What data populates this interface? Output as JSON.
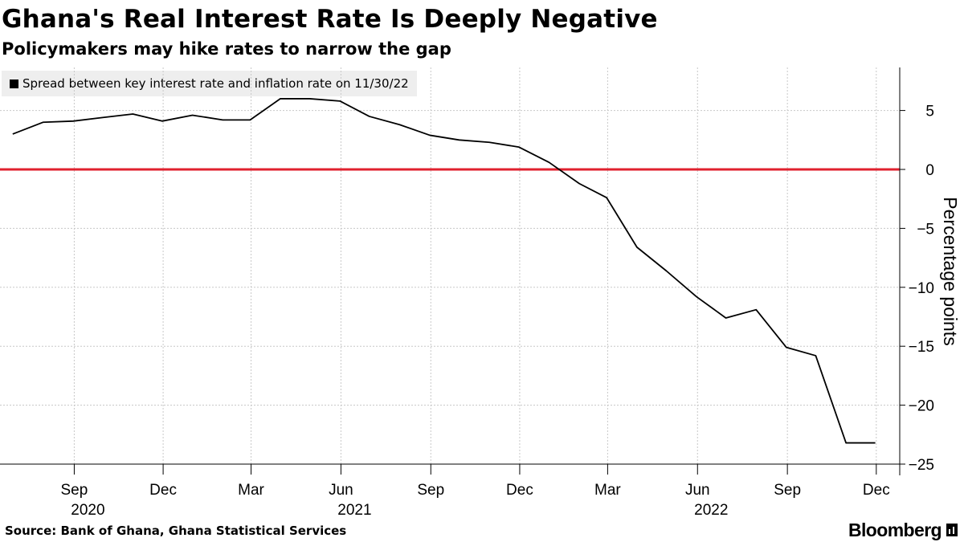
{
  "title": "Ghana's Real Interest Rate Is Deeply Negative",
  "subtitle": "Policymakers may hike rates to narrow the gap",
  "source": "Source: Bank of Ghana, Ghana Statistical Services",
  "brand": "Bloomberg",
  "colors": {
    "series": "#000000",
    "zero_line": "#e0202e",
    "legend_bg": "#eeeeee",
    "grid": "#c8c8c8"
  },
  "chart_data": {
    "type": "line",
    "title": "Ghana's Real Interest Rate Is Deeply Negative",
    "ylabel": "Percentage points",
    "ylim": [
      -25,
      8
    ],
    "y_ticks": [
      5,
      0,
      -5,
      -10,
      -15,
      -20,
      -25
    ],
    "x_ticks": [
      {
        "label": "Sep",
        "year": "2020"
      },
      {
        "label": "Dec",
        "year": ""
      },
      {
        "label": "Mar",
        "year": ""
      },
      {
        "label": "Jun",
        "year": "2021"
      },
      {
        "label": "Sep",
        "year": ""
      },
      {
        "label": "Dec",
        "year": ""
      },
      {
        "label": "Mar",
        "year": ""
      },
      {
        "label": "Jun",
        "year": "2022"
      },
      {
        "label": "Sep",
        "year": ""
      },
      {
        "label": "Dec",
        "year": ""
      }
    ],
    "reference_line": {
      "y": 0
    },
    "series": [
      {
        "name": "Spread between key interest rate and inflation rate on 11/30/22",
        "x": [
          "2020-06-30",
          "2020-07-31",
          "2020-08-31",
          "2020-09-30",
          "2020-10-31",
          "2020-11-30",
          "2020-12-31",
          "2021-01-31",
          "2021-02-28",
          "2021-03-31",
          "2021-04-30",
          "2021-05-31",
          "2021-06-30",
          "2021-07-31",
          "2021-08-31",
          "2021-09-30",
          "2021-10-31",
          "2021-11-30",
          "2021-12-31",
          "2022-01-31",
          "2022-02-28",
          "2022-03-31",
          "2022-04-30",
          "2022-05-31",
          "2022-06-30",
          "2022-07-31",
          "2022-08-31",
          "2022-09-30",
          "2022-10-31",
          "2022-11-30"
        ],
        "values": [
          3.0,
          4.0,
          4.1,
          4.4,
          4.7,
          4.1,
          4.6,
          4.2,
          4.2,
          6.0,
          6.0,
          5.8,
          4.5,
          3.8,
          2.9,
          2.5,
          2.3,
          1.9,
          0.6,
          -1.2,
          -2.4,
          -6.6,
          -8.6,
          -10.8,
          -12.6,
          -11.9,
          -15.1,
          -15.8,
          -23.2,
          -23.2
        ]
      }
    ]
  }
}
